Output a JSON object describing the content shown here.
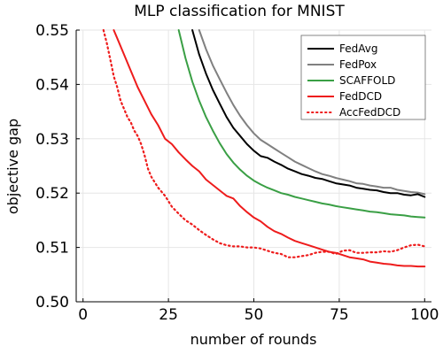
{
  "chart_data": {
    "type": "line",
    "title": "MLP classification for MNIST",
    "xlabel": "number of rounds",
    "ylabel": "objective gap",
    "xlim": [
      -2,
      102
    ],
    "ylim": [
      0.5,
      0.55
    ],
    "xticks": [
      0,
      25,
      50,
      75,
      100
    ],
    "xtick_labels": [
      "0",
      "25",
      "50",
      "75",
      "100"
    ],
    "yticks": [
      0.5,
      0.51,
      0.52,
      0.53,
      0.54,
      0.55
    ],
    "ytick_labels": [
      "0.50",
      "0.51",
      "0.52",
      "0.53",
      "0.54",
      "0.55"
    ],
    "grid": true,
    "legend_position": "top-right",
    "series": [
      {
        "name": "FedAvg",
        "color": "#000000",
        "dash": "solid",
        "x": [
          32,
          34,
          36,
          38,
          40,
          42,
          44,
          46,
          48,
          50,
          52,
          54,
          56,
          58,
          60,
          62,
          64,
          66,
          68,
          70,
          72,
          74,
          76,
          78,
          80,
          82,
          84,
          86,
          88,
          90,
          92,
          94,
          96,
          98,
          100
        ],
        "y": [
          0.55,
          0.5455,
          0.542,
          0.539,
          0.5365,
          0.534,
          0.532,
          0.5305,
          0.529,
          0.5278,
          0.5268,
          0.5265,
          0.5258,
          0.5252,
          0.5245,
          0.524,
          0.5235,
          0.5232,
          0.5228,
          0.5226,
          0.5222,
          0.5218,
          0.5216,
          0.5214,
          0.521,
          0.5208,
          0.5206,
          0.5205,
          0.5202,
          0.52,
          0.52,
          0.5197,
          0.5196,
          0.5198,
          0.5193
        ]
      },
      {
        "name": "FedPox",
        "color": "#808080",
        "dash": "solid",
        "x": [
          34,
          36,
          38,
          40,
          42,
          44,
          46,
          48,
          50,
          52,
          54,
          56,
          58,
          60,
          62,
          64,
          66,
          68,
          70,
          72,
          74,
          76,
          78,
          80,
          82,
          84,
          86,
          88,
          90,
          92,
          94,
          96,
          98,
          100
        ],
        "y": [
          0.55,
          0.5465,
          0.5435,
          0.541,
          0.5385,
          0.5362,
          0.5342,
          0.5325,
          0.531,
          0.5298,
          0.529,
          0.5282,
          0.5274,
          0.5266,
          0.5258,
          0.5252,
          0.5246,
          0.524,
          0.5235,
          0.5232,
          0.5228,
          0.5225,
          0.5222,
          0.5218,
          0.5217,
          0.5214,
          0.5212,
          0.521,
          0.521,
          0.5206,
          0.5204,
          0.5202,
          0.5201,
          0.5198
        ]
      },
      {
        "name": "SCAFFOLD",
        "color": "#3a9f45",
        "dash": "solid",
        "x": [
          28,
          30,
          32,
          34,
          36,
          38,
          40,
          42,
          44,
          46,
          48,
          50,
          52,
          54,
          56,
          58,
          60,
          62,
          64,
          66,
          68,
          70,
          72,
          74,
          76,
          78,
          80,
          82,
          84,
          86,
          88,
          90,
          92,
          94,
          96,
          98,
          100
        ],
        "y": [
          0.55,
          0.5448,
          0.5405,
          0.537,
          0.534,
          0.5315,
          0.5292,
          0.5272,
          0.5256,
          0.5243,
          0.5232,
          0.5223,
          0.5216,
          0.521,
          0.5205,
          0.52,
          0.5197,
          0.5193,
          0.519,
          0.5187,
          0.5184,
          0.5181,
          0.5179,
          0.5176,
          0.5174,
          0.5172,
          0.517,
          0.5168,
          0.5166,
          0.5165,
          0.5163,
          0.5161,
          0.516,
          0.5159,
          0.5157,
          0.5156,
          0.5155
        ]
      },
      {
        "name": "FedDCD",
        "color": "#ee1c1c",
        "dash": "solid",
        "x": [
          9,
          10,
          12,
          14,
          16,
          18,
          20,
          22,
          24,
          26,
          28,
          30,
          32,
          34,
          36,
          38,
          40,
          42,
          44,
          46,
          48,
          50,
          52,
          54,
          56,
          58,
          60,
          62,
          64,
          66,
          68,
          70,
          72,
          74,
          76,
          78,
          80,
          82,
          84,
          86,
          88,
          90,
          92,
          94,
          96,
          98,
          100
        ],
        "y": [
          0.55,
          0.5485,
          0.5455,
          0.5425,
          0.5395,
          0.537,
          0.5345,
          0.5325,
          0.53,
          0.529,
          0.5275,
          0.5262,
          0.525,
          0.524,
          0.5225,
          0.5215,
          0.5205,
          0.5195,
          0.519,
          0.5176,
          0.5165,
          0.5155,
          0.5148,
          0.5138,
          0.513,
          0.5125,
          0.5118,
          0.5112,
          0.5108,
          0.5104,
          0.51,
          0.5096,
          0.5092,
          0.509,
          0.5086,
          0.5082,
          0.508,
          0.5078,
          0.5074,
          0.5072,
          0.507,
          0.5069,
          0.5067,
          0.5066,
          0.5066,
          0.5065,
          0.5065
        ]
      },
      {
        "name": "AccFedDCD",
        "color": "#ee1c1c",
        "dash": "dotted",
        "x": [
          6,
          7,
          8,
          9,
          10,
          11,
          12,
          13,
          14,
          15,
          16,
          17,
          18,
          19,
          20,
          22,
          24,
          26,
          28,
          30,
          32,
          34,
          36,
          38,
          40,
          42,
          44,
          46,
          48,
          50,
          52,
          54,
          56,
          58,
          60,
          62,
          64,
          66,
          68,
          70,
          72,
          74,
          76,
          78,
          80,
          82,
          84,
          86,
          88,
          90,
          92,
          94,
          96,
          98,
          100
        ],
        "y": [
          0.55,
          0.5475,
          0.5445,
          0.5415,
          0.5395,
          0.537,
          0.5355,
          0.534,
          0.533,
          0.5315,
          0.5305,
          0.529,
          0.527,
          0.5245,
          0.523,
          0.521,
          0.5195,
          0.5175,
          0.5162,
          0.515,
          0.5142,
          0.5132,
          0.5123,
          0.5115,
          0.5108,
          0.5104,
          0.5102,
          0.5102,
          0.51,
          0.51,
          0.5098,
          0.5094,
          0.509,
          0.5088,
          0.5082,
          0.5082,
          0.5084,
          0.5086,
          0.509,
          0.5092,
          0.5092,
          0.5088,
          0.5094,
          0.5095,
          0.509,
          0.509,
          0.5091,
          0.5091,
          0.5093,
          0.5092,
          0.5095,
          0.51,
          0.5104,
          0.5105,
          0.5102
        ]
      }
    ]
  }
}
